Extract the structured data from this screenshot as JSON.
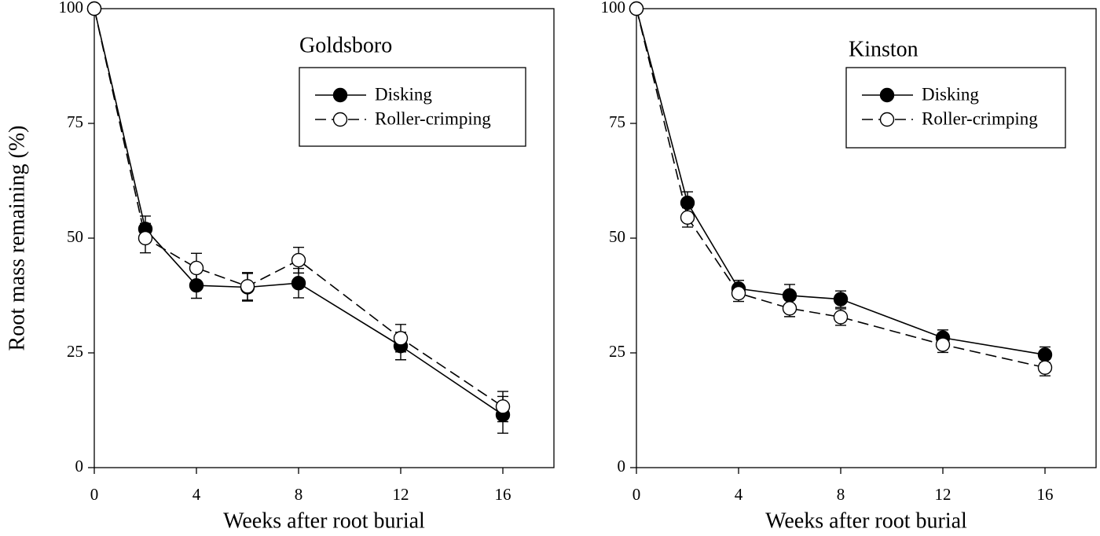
{
  "chart_data": [
    {
      "type": "line",
      "title": "Goldsboro",
      "xlabel": "Weeks after root burial",
      "ylabel": "Root mass remaining (%)",
      "x": [
        0,
        2,
        4,
        6,
        8,
        12,
        16
      ],
      "xlim": [
        0,
        18
      ],
      "xticks": [
        0,
        4,
        8,
        12,
        16
      ],
      "ylim": [
        0,
        100
      ],
      "yticks": [
        0,
        25,
        50,
        75,
        100
      ],
      "series": [
        {
          "name": "Disking",
          "color": "#000000",
          "marker_fill": "#000000",
          "linestyle": "solid",
          "values": [
            100,
            52,
            39.7,
            39.3,
            40.2,
            26.5,
            11.5
          ],
          "errors": [
            0,
            2.8,
            2.8,
            3,
            3.2,
            3,
            4
          ]
        },
        {
          "name": "Roller-crimping",
          "color": "#000000",
          "marker_fill": "#ffffff",
          "linestyle": "dashed",
          "values": [
            100,
            50,
            43.5,
            39.5,
            45.2,
            28.2,
            13.3
          ],
          "errors": [
            0,
            3.2,
            3.2,
            3,
            2.8,
            3,
            3.3
          ]
        }
      ]
    },
    {
      "type": "line",
      "title": "Kinston",
      "xlabel": "Weeks after root burial",
      "x": [
        0,
        2,
        4,
        6,
        8,
        12,
        16
      ],
      "xlim": [
        0,
        18
      ],
      "xticks": [
        0,
        4,
        8,
        12,
        16
      ],
      "ylim": [
        0,
        100
      ],
      "yticks": [
        0,
        25,
        50,
        75,
        100
      ],
      "series": [
        {
          "name": "Disking",
          "color": "#000000",
          "marker_fill": "#000000",
          "linestyle": "solid",
          "values": [
            100,
            57.7,
            39,
            37.5,
            36.7,
            28.3,
            24.6
          ],
          "errors": [
            0,
            2.4,
            1.8,
            2.4,
            1.8,
            1.7,
            1.7
          ]
        },
        {
          "name": "Roller-crimping",
          "color": "#000000",
          "marker_fill": "#ffffff",
          "linestyle": "dashed",
          "values": [
            100,
            54.5,
            38,
            34.7,
            32.8,
            26.8,
            21.8
          ],
          "errors": [
            0,
            2.1,
            1.8,
            1.8,
            1.8,
            1.7,
            1.8
          ]
        }
      ]
    }
  ]
}
